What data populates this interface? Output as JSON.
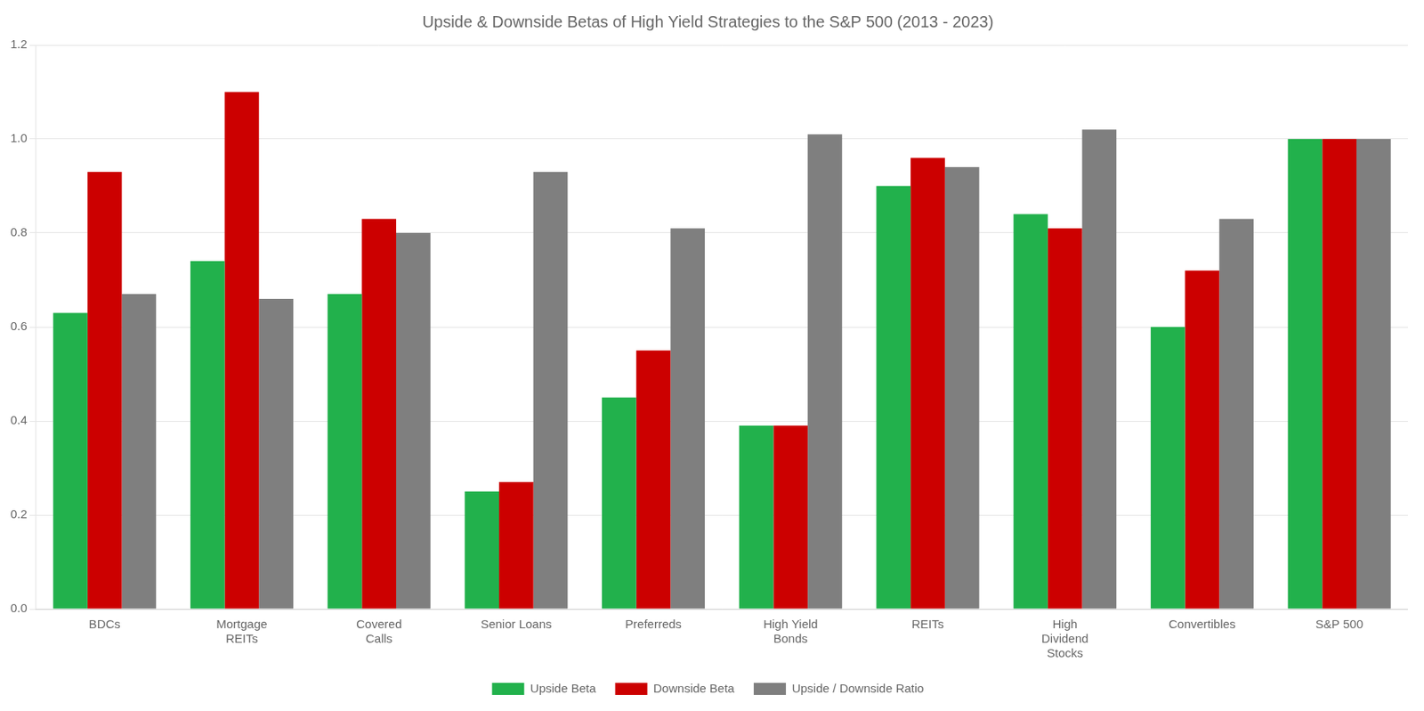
{
  "chart_data": {
    "type": "bar",
    "title": "Upside & Downside Betas of High Yield Strategies to the S&P 500 (2013 - 2023)",
    "categories": [
      "BDCs",
      "Mortgage\nREITs",
      "Covered\nCalls",
      "Senior Loans",
      "Preferreds",
      "High Yield\nBonds",
      "REITs",
      "High\nDividend\nStocks",
      "Convertibles",
      "S&P 500"
    ],
    "series": [
      {
        "name": "Upside Beta",
        "color": "#22b14c",
        "values": [
          0.63,
          0.74,
          0.67,
          0.25,
          0.45,
          0.39,
          0.9,
          0.84,
          0.6,
          1.0
        ]
      },
      {
        "name": "Downside Beta",
        "color": "#cc0000",
        "values": [
          0.93,
          1.1,
          0.83,
          0.27,
          0.55,
          0.39,
          0.96,
          0.81,
          0.72,
          1.0
        ]
      },
      {
        "name": "Upside / Downside Ratio",
        "color": "#7f7f7f",
        "values": [
          0.67,
          0.66,
          0.8,
          0.93,
          0.81,
          1.01,
          0.94,
          1.02,
          0.83,
          1.0
        ]
      }
    ],
    "ylim": [
      0,
      1.2
    ],
    "yticks": [
      {
        "value": 0,
        "label": "0.0"
      },
      0.2,
      0.4,
      0.6,
      0.8,
      {
        "value": 1,
        "label": "1.0"
      },
      1.2
    ],
    "grid": true,
    "legend": "bottom"
  }
}
